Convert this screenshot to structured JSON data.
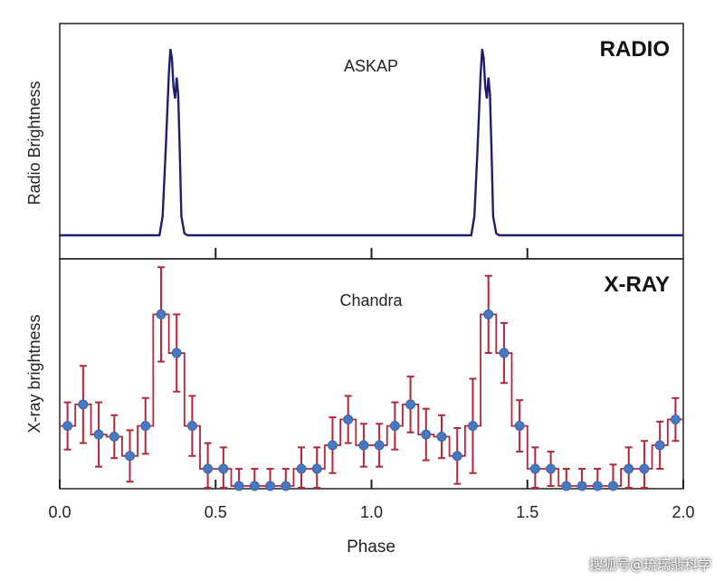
{
  "watermark": "搜狐号@琉璃翡科学",
  "chart_data": {
    "type": "line",
    "xlabel": "Phase",
    "xlim": [
      0.0,
      2.0
    ],
    "x_ticks": [
      "0.0",
      "0.5",
      "1.0",
      "1.5",
      "2.0"
    ],
    "x_tick_values": [
      0.0,
      0.5,
      1.0,
      1.5,
      2.0
    ],
    "panels": [
      {
        "label": "RADIO",
        "instrument": "ASKAP",
        "ylabel": "Radio Brightness",
        "ylim": [
          0,
          1.0
        ],
        "color": "#1f1f6e",
        "series": {
          "x": [
            0.0,
            0.32,
            0.33,
            0.34,
            0.35,
            0.355,
            0.36,
            0.365,
            0.37,
            0.375,
            0.38,
            0.385,
            0.39,
            0.4,
            0.41,
            1.0,
            1.32,
            1.33,
            1.34,
            1.35,
            1.355,
            1.36,
            1.365,
            1.37,
            1.375,
            1.38,
            1.385,
            1.39,
            1.4,
            1.41,
            2.0
          ],
          "y": [
            0.0,
            0.0,
            0.1,
            0.45,
            0.85,
            0.98,
            0.93,
            0.78,
            0.72,
            0.83,
            0.74,
            0.45,
            0.1,
            0.01,
            0.0,
            0.0,
            0.0,
            0.1,
            0.45,
            0.85,
            0.98,
            0.93,
            0.78,
            0.72,
            0.83,
            0.74,
            0.45,
            0.1,
            0.01,
            0.0,
            0.0
          ]
        }
      },
      {
        "label": "X-RAY",
        "instrument": "Chandra",
        "ylabel": "X-ray brightness",
        "ylim": [
          0,
          1.0
        ],
        "color": "#4a78c0",
        "error_color": "#b0283a",
        "series": {
          "x": [
            0.025,
            0.075,
            0.125,
            0.175,
            0.225,
            0.275,
            0.325,
            0.375,
            0.425,
            0.475,
            0.525,
            0.575,
            0.625,
            0.675,
            0.725,
            0.775,
            0.825,
            0.875,
            0.925,
            0.975,
            1.025,
            1.075,
            1.125,
            1.175,
            1.225,
            1.275,
            1.325,
            1.375,
            1.425,
            1.475,
            1.525,
            1.575,
            1.625,
            1.675,
            1.725,
            1.775,
            1.825,
            1.875,
            1.925,
            1.975
          ],
          "y": [
            0.28,
            0.38,
            0.24,
            0.23,
            0.14,
            0.28,
            0.8,
            0.62,
            0.28,
            0.08,
            0.08,
            0.0,
            0.0,
            0.0,
            0.0,
            0.08,
            0.08,
            0.19,
            0.31,
            0.19,
            0.19,
            0.28,
            0.38,
            0.24,
            0.23,
            0.14,
            0.28,
            0.8,
            0.62,
            0.28,
            0.08,
            0.08,
            0.0,
            0.0,
            0.0,
            0.0,
            0.08,
            0.08,
            0.19,
            0.31
          ],
          "err": [
            0.11,
            0.18,
            0.15,
            0.1,
            0.12,
            0.13,
            0.22,
            0.18,
            0.14,
            0.12,
            0.1,
            0.08,
            0.08,
            0.08,
            0.08,
            0.1,
            0.1,
            0.13,
            0.11,
            0.1,
            0.1,
            0.11,
            0.13,
            0.12,
            0.1,
            0.13,
            0.22,
            0.18,
            0.14,
            0.12,
            0.1,
            0.08,
            0.08,
            0.08,
            0.08,
            0.1,
            0.1,
            0.13,
            0.11,
            0.1
          ]
        }
      }
    ]
  }
}
